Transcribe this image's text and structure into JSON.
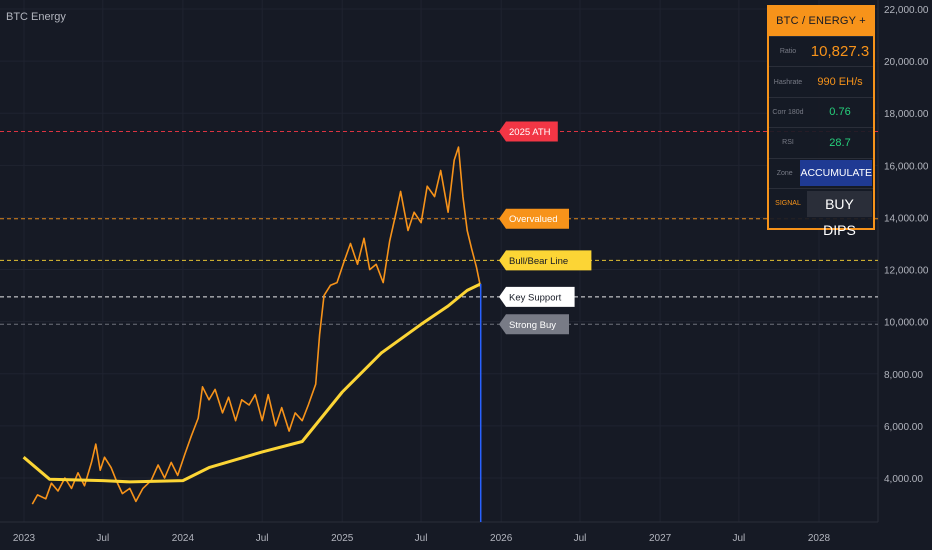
{
  "title": "BTC Energy",
  "chart_data": {
    "type": "line",
    "x_ticks": [
      "2023",
      "Jul",
      "2024",
      "Jul",
      "2025",
      "Jul",
      "2026",
      "Jul",
      "2027",
      "Jul",
      "2028"
    ],
    "xlim": [
      "2023-01-01",
      "2028-07-01"
    ],
    "y_ticks": [
      "4,000.00",
      "6,000.00",
      "8,000.00",
      "10,000.00",
      "12,000.00",
      "14,000.00",
      "16,000.00",
      "18,000.00",
      "20,000.00",
      "22,000.00"
    ],
    "ylim": [
      2800,
      22500
    ],
    "series": [
      {
        "color": "#f7931a",
        "points": [
          [
            "2023-01-20",
            3000
          ],
          [
            "2023-02-01",
            3350
          ],
          [
            "2023-02-20",
            3200
          ],
          [
            "2023-03-05",
            3800
          ],
          [
            "2023-03-20",
            3500
          ],
          [
            "2023-04-05",
            4000
          ],
          [
            "2023-04-20",
            3600
          ],
          [
            "2023-05-05",
            4200
          ],
          [
            "2023-05-20",
            3700
          ],
          [
            "2023-06-05",
            4600
          ],
          [
            "2023-06-15",
            5300
          ],
          [
            "2023-06-25",
            4300
          ],
          [
            "2023-07-05",
            4800
          ],
          [
            "2023-07-20",
            4400
          ],
          [
            "2023-08-01",
            3900
          ],
          [
            "2023-08-15",
            3400
          ],
          [
            "2023-09-01",
            3600
          ],
          [
            "2023-09-15",
            3100
          ],
          [
            "2023-10-01",
            3600
          ],
          [
            "2023-10-20",
            3900
          ],
          [
            "2023-11-05",
            4500
          ],
          [
            "2023-11-20",
            4000
          ],
          [
            "2023-12-05",
            4600
          ],
          [
            "2023-12-20",
            4100
          ],
          [
            "2024-01-05",
            4900
          ],
          [
            "2024-01-20",
            5600
          ],
          [
            "2024-02-05",
            6300
          ],
          [
            "2024-02-15",
            7500
          ],
          [
            "2024-03-01",
            7000
          ],
          [
            "2024-03-15",
            7400
          ],
          [
            "2024-04-01",
            6500
          ],
          [
            "2024-04-15",
            7100
          ],
          [
            "2024-05-01",
            6200
          ],
          [
            "2024-05-15",
            7000
          ],
          [
            "2024-06-01",
            6800
          ],
          [
            "2024-06-15",
            7200
          ],
          [
            "2024-07-01",
            6200
          ],
          [
            "2024-07-15",
            7200
          ],
          [
            "2024-08-01",
            6000
          ],
          [
            "2024-08-15",
            6700
          ],
          [
            "2024-09-01",
            5800
          ],
          [
            "2024-09-15",
            6500
          ],
          [
            "2024-10-01",
            6200
          ],
          [
            "2024-10-15",
            6800
          ],
          [
            "2024-11-01",
            7600
          ],
          [
            "2024-11-10",
            9500
          ],
          [
            "2024-11-20",
            11000
          ],
          [
            "2024-12-05",
            11400
          ],
          [
            "2024-12-20",
            11500
          ],
          [
            "2025-01-05",
            12300
          ],
          [
            "2025-01-20",
            13000
          ],
          [
            "2025-02-05",
            12200
          ],
          [
            "2025-02-20",
            13200
          ],
          [
            "2025-03-05",
            12000
          ],
          [
            "2025-03-20",
            12200
          ],
          [
            "2025-04-05",
            11500
          ],
          [
            "2025-04-20",
            13100
          ],
          [
            "2025-05-05",
            14200
          ],
          [
            "2025-05-15",
            15000
          ],
          [
            "2025-06-01",
            13500
          ],
          [
            "2025-06-15",
            14200
          ],
          [
            "2025-07-01",
            13800
          ],
          [
            "2025-07-15",
            15200
          ],
          [
            "2025-08-01",
            14800
          ],
          [
            "2025-08-15",
            15800
          ],
          [
            "2025-09-01",
            14200
          ],
          [
            "2025-09-15",
            16200
          ],
          [
            "2025-09-25",
            16700
          ],
          [
            "2025-10-05",
            14800
          ],
          [
            "2025-10-15",
            13500
          ],
          [
            "2025-10-25",
            12800
          ],
          [
            "2025-11-05",
            12100
          ],
          [
            "2025-11-15",
            11300
          ]
        ]
      },
      {
        "color": "#fcd535",
        "points": [
          [
            "2022-12-31",
            4800
          ],
          [
            "2023-03-01",
            3950
          ],
          [
            "2023-07-01",
            3900
          ],
          [
            "2023-09-01",
            3850
          ],
          [
            "2024-01-01",
            3900
          ],
          [
            "2024-03-01",
            4400
          ],
          [
            "2024-07-01",
            5000
          ],
          [
            "2024-10-01",
            5400
          ],
          [
            "2025-01-01",
            7300
          ],
          [
            "2025-04-01",
            8800
          ],
          [
            "2025-07-01",
            9900
          ],
          [
            "2025-09-01",
            10600
          ],
          [
            "2025-10-15",
            11200
          ],
          [
            "2025-11-15",
            11450
          ]
        ]
      }
    ],
    "levels": [
      {
        "value": 17300,
        "label": "2025 ATH",
        "color": "#f23645",
        "text_color": "#ffffff"
      },
      {
        "value": 13950,
        "label": "Overvalued",
        "color": "#f7931a",
        "text_color": "#ffffff"
      },
      {
        "value": 12350,
        "label": "Bull/Bear Line",
        "color": "#fcd535",
        "text_color": "#161a25"
      },
      {
        "value": 10950,
        "label": "Key Support",
        "color": "#ffffff",
        "text_color": "#161a25"
      },
      {
        "value": 9900,
        "label": "Strong Buy",
        "color": "#787b86",
        "text_color": "#ffffff"
      }
    ],
    "vertical_marker": {
      "date": "2025-11-15",
      "color": "#2962ff"
    }
  },
  "panel": {
    "header": "BTC / ENERGY + HR",
    "rows": [
      {
        "label": "Ratio",
        "value": "10,827.3"
      },
      {
        "label": "Hashrate",
        "value": "990 EH/s"
      },
      {
        "label": "Corr 180d",
        "value": "0.76"
      },
      {
        "label": "RSI",
        "value": "28.7"
      },
      {
        "label": "Zone",
        "value": "ACCUMULATE"
      },
      {
        "label": "SIGNAL",
        "value": "BUY DIPS"
      }
    ]
  }
}
